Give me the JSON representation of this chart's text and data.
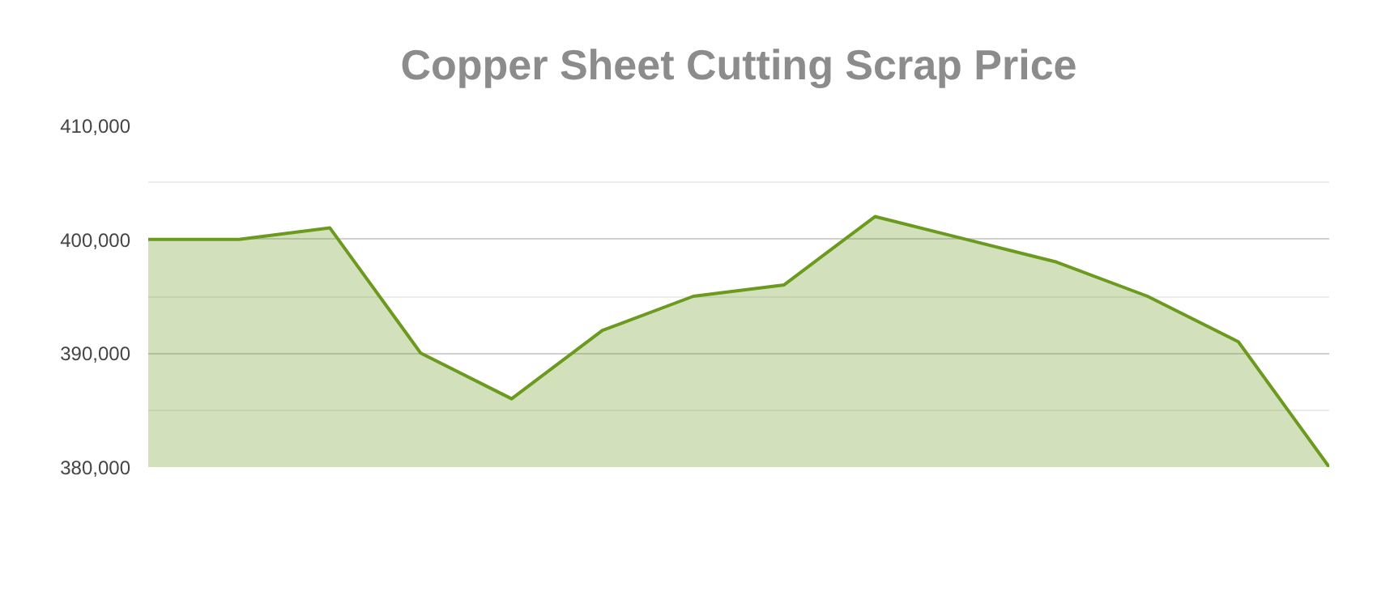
{
  "chart_data": {
    "type": "area",
    "title": "Copper Sheet Cutting Scrap Price",
    "categories": [
      null,
      null,
      null,
      null,
      null,
      null,
      null,
      null,
      null,
      null,
      null,
      null,
      null,
      null
    ],
    "series": [
      {
        "color": "#6b9a1f",
        "values": [
          400000,
          400000,
          401000,
          390000,
          386000,
          392000,
          395000,
          396000,
          402000,
          400000,
          398000,
          395000,
          391000,
          380000
        ]
      }
    ],
    "ylim": [
      380000,
      410000
    ],
    "yticks": [
      {
        "value": 380000,
        "label": "380,000"
      },
      {
        "value": 385000,
        "label": null
      },
      {
        "value": 390000,
        "label": "390,000"
      },
      {
        "value": 395000,
        "label": null
      },
      {
        "value": 400000,
        "label": "400,000"
      },
      {
        "value": 405000,
        "label": null
      },
      {
        "value": 410000,
        "label": "410,000"
      }
    ],
    "grid": "y"
  }
}
